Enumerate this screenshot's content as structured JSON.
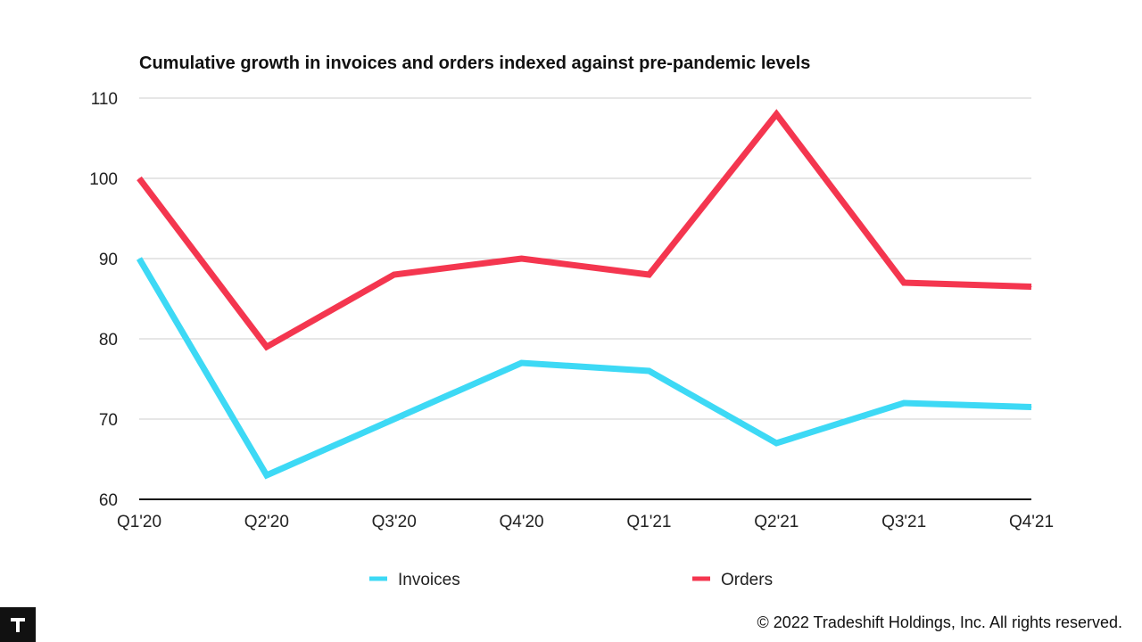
{
  "chart_data": {
    "type": "line",
    "title": "Cumulative growth in invoices and orders indexed against pre-pandemic levels",
    "categories": [
      "Q1'20",
      "Q2'20",
      "Q3'20",
      "Q4'20",
      "Q1'21",
      "Q2'21",
      "Q3'21",
      "Q4'21"
    ],
    "series": [
      {
        "name": "Invoices",
        "color": "#3dd9f5",
        "values": [
          90,
          63,
          70,
          77,
          76,
          67,
          72,
          71.5
        ]
      },
      {
        "name": "Orders",
        "color": "#f4364f",
        "values": [
          100,
          79,
          88,
          90,
          88,
          108,
          87,
          86.5
        ]
      }
    ],
    "ylim": [
      60,
      110
    ],
    "yticks": [
      60,
      70,
      80,
      90,
      100,
      110
    ],
    "grid": true,
    "legend": "bottom"
  },
  "footer": {
    "copyright": "© 2022 Tradeshift Holdings, Inc. All rights reserved.",
    "logo_icon": "tradeshift-logo-icon"
  }
}
